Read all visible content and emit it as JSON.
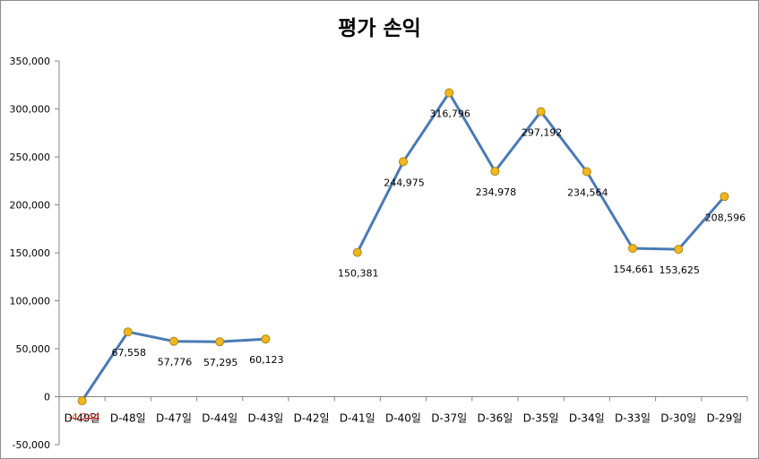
{
  "chart_data": {
    "type": "line",
    "title": "평가 손익",
    "xlabel": "",
    "ylabel": "",
    "ylim": [
      -50000,
      350000
    ],
    "y_ticks": [
      350000,
      300000,
      250000,
      200000,
      150000,
      100000,
      50000,
      0,
      -50000
    ],
    "y_tick_labels": [
      "350,000",
      "300,000",
      "250,000",
      "200,000",
      "150,000",
      "100,000",
      "50,000",
      "0",
      "-50,000"
    ],
    "categories": [
      "D-49일",
      "D-48일",
      "D-47일",
      "D-44일",
      "D-43일",
      "D-42일",
      "D-41일",
      "D-40일",
      "D-37일",
      "D-36일",
      "D-35일",
      "D-34일",
      "D-33일",
      "D-30일",
      "D-29일"
    ],
    "series": [
      {
        "values": [
          -4244,
          67558,
          57776,
          57295,
          60123,
          null,
          150381,
          244975,
          316796,
          234978,
          297192,
          234564,
          154661,
          153625,
          208596
        ],
        "labels": [
          "-4,244",
          "67,558",
          "57,776",
          "57,295",
          "60,123",
          "",
          "150,381",
          "244,975",
          "316,796",
          "234,978",
          "297,192",
          "234,564",
          "154,661",
          "153,625",
          "208,596"
        ],
        "line_color": "#4a7ab5",
        "marker_color": "#f0b820",
        "marker_edge_color": "#b08410",
        "negative_label_color": "#e02020"
      }
    ],
    "grid": false,
    "legend": "none"
  }
}
